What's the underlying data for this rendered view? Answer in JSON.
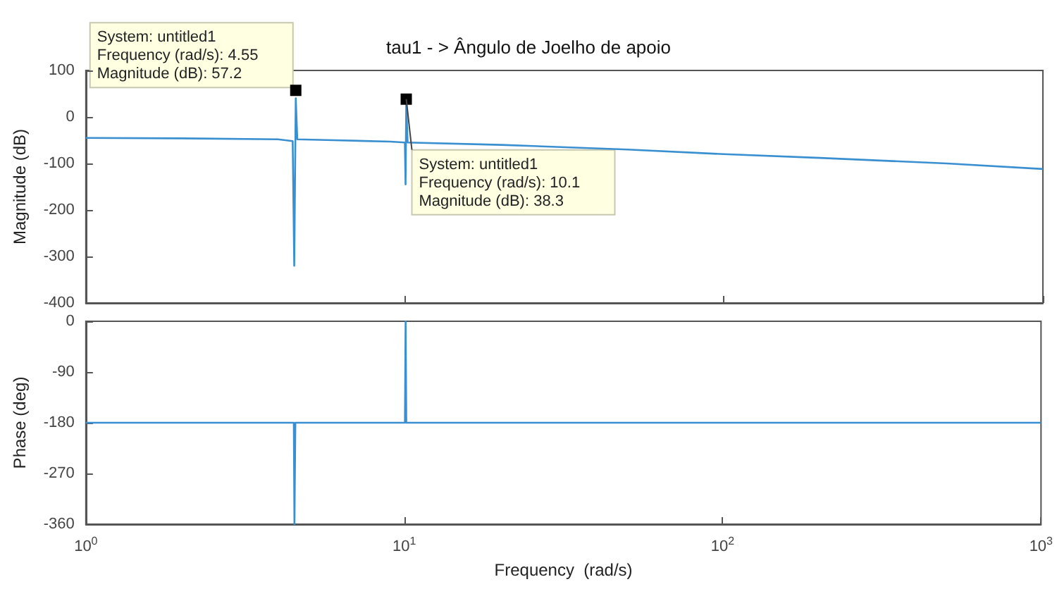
{
  "chart_data": [
    {
      "type": "line",
      "title": "tau1 - > Ângulo de Joelho de apoio",
      "ylabel": "Magnitude (dB)",
      "tick_labels": "y",
      "grid": false,
      "marker": "none",
      "line_style": "solid",
      "log": "x",
      "xlim": [
        1,
        1000
      ],
      "xticks": [
        {
          "value": 1,
          "label": null
        },
        {
          "value": 10,
          "label": null
        },
        {
          "value": 100,
          "label": null
        },
        {
          "value": 1000,
          "label": null
        }
      ],
      "ylim": [
        -400,
        100
      ],
      "yticks": [
        -400,
        -300,
        -200,
        -100,
        0,
        100
      ],
      "series": [
        {
          "color": "#3a8fd0",
          "x": [
            1,
            2,
            4,
            4.45,
            4.5,
            4.55,
            4.6,
            6,
            9,
            10,
            10.05,
            10.1,
            10.2,
            20,
            50,
            100,
            200,
            500,
            1000
          ],
          "values": [
            -45,
            -46,
            -48,
            -52,
            -320,
            40,
            -48,
            -50,
            -53,
            -55,
            -145,
            30,
            -55,
            -60,
            -70,
            -80,
            -88,
            -100,
            -112
          ]
        }
      ],
      "annotations": [
        {
          "text": "System: untitled1\nFrequency (rad/s): 4.55\nMagnitude (dB): 57.2",
          "x": 4.55,
          "y": 57.2
        },
        {
          "text": "System: untitled1\nFrequency (rad/s): 10.1\nMagnitude (dB): 38.3",
          "x": 10.1,
          "y": 38.3
        }
      ]
    },
    {
      "type": "line",
      "xlabel": "Frequency  (rad/s)",
      "ylabel": "Phase (deg)",
      "grid": false,
      "marker": "none",
      "line_style": "solid",
      "log": "x",
      "xlim": [
        1,
        1000
      ],
      "xticks": [
        {
          "value": 1,
          "label": "10$^{0}$"
        },
        {
          "value": 10,
          "label": "10$^{1}$"
        },
        {
          "value": 100,
          "label": "10$^{2}$"
        },
        {
          "value": 1000,
          "label": "10$^{3}$"
        }
      ],
      "ylim": [
        -360,
        0
      ],
      "yticks": [
        -360,
        -270,
        -180,
        -90,
        0
      ],
      "series": [
        {
          "color": "#3a8fd0",
          "x": [
            1,
            4.5,
            4.52,
            4.55,
            10.05,
            10.1,
            10.15,
            1000
          ],
          "values": [
            -180,
            -180,
            -360,
            -180,
            -180,
            0,
            -180,
            -180
          ]
        }
      ]
    }
  ]
}
